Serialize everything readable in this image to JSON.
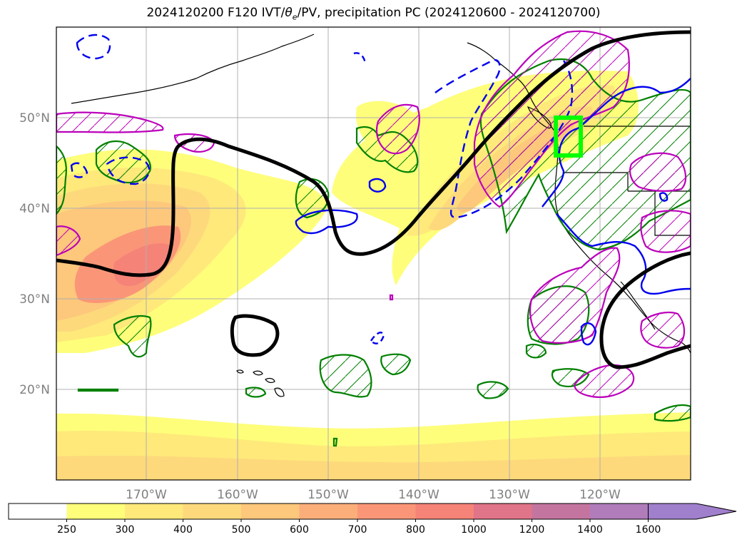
{
  "title": "2024120200 F120 IVT/θe/PV, precipitation PC (2024120600 - 2024120700)",
  "title_parts": {
    "prefix": "2024120200 F120 IVT/",
    "theta": "θ",
    "theta_sub": "e",
    "suffix": "/PV, precipitation PC (2024120600 - 2024120700)"
  },
  "lat_labels": [
    "50°N",
    "40°N",
    "30°N",
    "20°N"
  ],
  "lon_labels": [
    "170°W",
    "160°W",
    "150°W",
    "140°W",
    "130°W",
    "120°W"
  ],
  "colorbar": {
    "ticks": [
      "250",
      "300",
      "400",
      "500",
      "600",
      "700",
      "800",
      "1000",
      "1200",
      "1400",
      "1600"
    ],
    "colors": [
      "#ffffff",
      "#fefe7b",
      "#fee97a",
      "#fdd97c",
      "#fdc77c",
      "#fcae7a",
      "#fa9677",
      "#f58378",
      "#e07489",
      "#c4759f",
      "#b07cba",
      "#a07fcc"
    ],
    "extend": "max"
  },
  "colors": {
    "ivt_low": "#fefe7b",
    "ivt_mid": "#fdc77c",
    "ivt_high": "#f58378",
    "theta_e_contour": "#000000",
    "pv_contour": "#0000ee",
    "precip_green": "#008000",
    "precip_magenta": "#bb00bb",
    "target_box": "#00ff00",
    "gridline": "#b0b0b0",
    "coast": "#000000"
  },
  "target_box_region": "Pacific Northwest"
}
